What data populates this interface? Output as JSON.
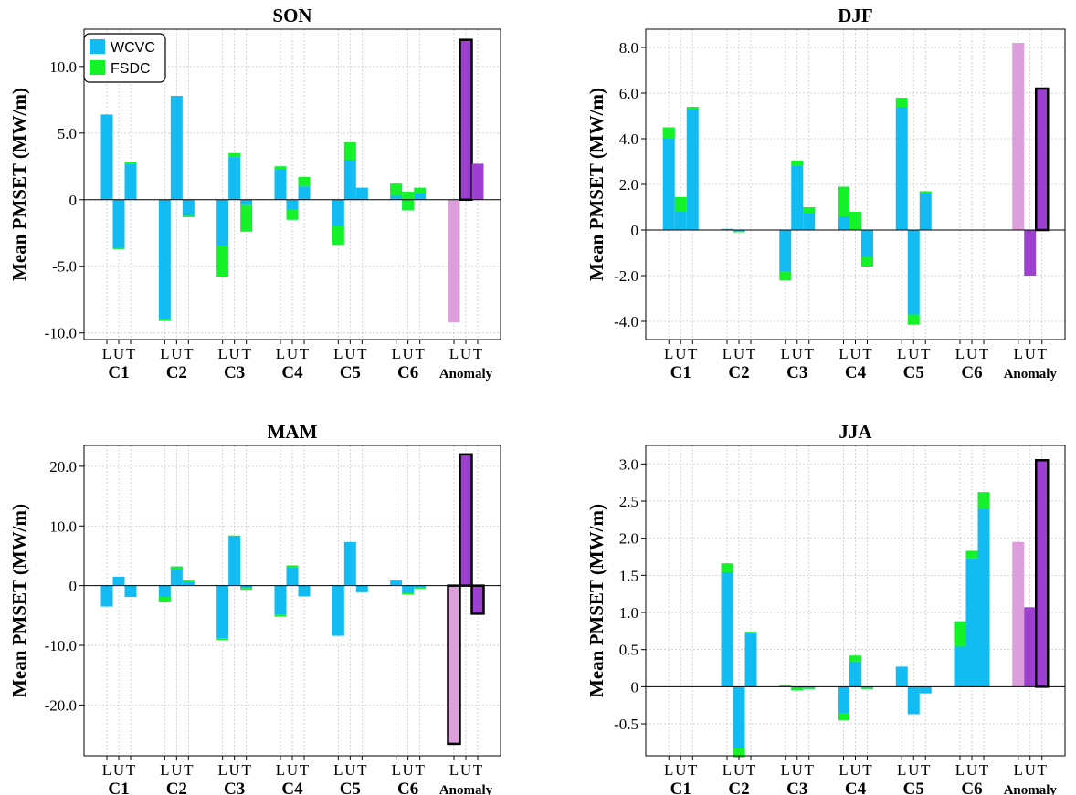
{
  "colors": {
    "WCVC": "#12bcf2",
    "FSDC": "#16f22a",
    "anomaly_L": "#dc9fdc",
    "anomaly_U": "#9d40d2",
    "anomaly_T": "#9d40d2"
  },
  "legend": {
    "items": [
      "WCVC",
      "FSDC"
    ]
  },
  "chart_data": [
    {
      "type": "bar",
      "title": "SON",
      "ylabel": "Mean PMSET (MW/m)",
      "ylim": [
        -10.5,
        12.8
      ],
      "yticks": [
        -10.0,
        -5.0,
        0,
        5.0,
        10.0
      ],
      "ytick_labels": [
        "-10.0",
        "-5.0",
        "0",
        "5.0",
        "10.0"
      ],
      "sublabels": [
        "L",
        "U",
        "T"
      ],
      "categories": [
        "C1",
        "C2",
        "C3",
        "C4",
        "C5",
        "C6",
        "Anomaly"
      ],
      "legend": "top-left",
      "grid": true,
      "series": [
        {
          "name": "WCVC",
          "values": [
            [
              6.4,
              -3.7,
              2.7
            ],
            [
              -9.1,
              7.8,
              -1.3
            ],
            [
              -3.5,
              3.2,
              -0.4
            ],
            [
              2.5,
              -1.5,
              1.0
            ],
            [
              -2.0,
              3.0,
              0.9
            ],
            [
              1.2,
              -0.8,
              0.5
            ]
          ]
        },
        {
          "name": "FSDC",
          "values": [
            [
              0.0,
              0.1,
              0.15
            ],
            [
              0.1,
              0.0,
              0.1
            ],
            [
              -2.3,
              0.3,
              -2.0
            ],
            [
              -0.2,
              0.8,
              0.7
            ],
            [
              -1.4,
              1.3,
              0.0
            ],
            [
              -0.9,
              1.4,
              0.4
            ]
          ]
        }
      ],
      "anomaly": {
        "L": -9.2,
        "U": 12.0,
        "T": 2.7,
        "outlined": "U"
      }
    },
    {
      "type": "bar",
      "title": "DJF",
      "ylabel": "Mean PMSET (MW/m)",
      "ylim": [
        -4.8,
        8.8
      ],
      "yticks": [
        -4.0,
        -2.0,
        0,
        2.0,
        4.0,
        6.0,
        8.0
      ],
      "ytick_labels": [
        "-4.0",
        "-2.0",
        "0",
        "2.0",
        "4.0",
        "6.0",
        "8.0"
      ],
      "sublabels": [
        "L",
        "U",
        "T"
      ],
      "categories": [
        "C1",
        "C2",
        "C3",
        "C4",
        "C5",
        "C6",
        "Anomaly"
      ],
      "grid": true,
      "series": [
        {
          "name": "WCVC",
          "values": [
            [
              4.5,
              0.8,
              5.3
            ],
            [
              0.05,
              -0.05,
              0.0
            ],
            [
              -1.8,
              2.8,
              1.0
            ],
            [
              1.9,
              0.0,
              -1.2
            ],
            [
              5.4,
              -3.7,
              1.7
            ],
            [
              0.0,
              0.0,
              0.0
            ]
          ]
        },
        {
          "name": "FSDC",
          "values": [
            [
              -0.5,
              0.65,
              0.1
            ],
            [
              0.0,
              -0.05,
              0.0
            ],
            [
              -0.4,
              0.25,
              -0.25
            ],
            [
              -1.3,
              0.8,
              -0.4
            ],
            [
              0.4,
              -0.45,
              -0.1
            ],
            [
              0.0,
              0.0,
              0.0
            ]
          ]
        }
      ],
      "anomaly": {
        "L": 8.2,
        "U": -2.0,
        "T": 6.2,
        "outlined": "T"
      }
    },
    {
      "type": "bar",
      "title": "MAM",
      "ylabel": "Mean PMSET (MW/m)",
      "ylim": [
        -28.5,
        23.5
      ],
      "yticks": [
        -20.0,
        -10.0,
        0,
        10.0,
        20.0
      ],
      "ytick_labels": [
        "-20.0",
        "-10.0",
        "0",
        "10.0",
        "20.0"
      ],
      "sublabels": [
        "L",
        "U",
        "T"
      ],
      "categories": [
        "C1",
        "C2",
        "C3",
        "C4",
        "C5",
        "C6",
        "Anomaly"
      ],
      "grid": true,
      "series": [
        {
          "name": "WCVC",
          "values": [
            [
              -3.5,
              1.5,
              -1.9
            ],
            [
              -2.8,
              3.2,
              0.7
            ],
            [
              -8.8,
              8.3,
              -0.4
            ],
            [
              -4.8,
              3.0,
              -1.8
            ],
            [
              -8.4,
              7.3,
              -1.1
            ],
            [
              1.0,
              -1.2,
              -0.3
            ]
          ]
        },
        {
          "name": "FSDC",
          "values": [
            [
              0.0,
              0.0,
              0.0
            ],
            [
              0.9,
              -0.5,
              0.3
            ],
            [
              -0.3,
              0.1,
              -0.3
            ],
            [
              -0.4,
              0.4,
              0.0
            ],
            [
              0.0,
              0.0,
              0.0
            ],
            [
              0.0,
              -0.3,
              -0.2
            ]
          ]
        }
      ],
      "anomaly": {
        "L": -26.5,
        "U": 22.0,
        "T": -4.7,
        "outlined": "L,U,T"
      }
    },
    {
      "type": "bar",
      "title": "JJA",
      "ylabel": "Mean PMSET (MW/m)",
      "ylim": [
        -0.93,
        3.25
      ],
      "yticks": [
        -0.5,
        0.0,
        0.5,
        1.0,
        1.5,
        2.0,
        2.5,
        3.0
      ],
      "ytick_labels": [
        "-0.5",
        "0",
        "0.5",
        "1.0",
        "1.5",
        "2.0",
        "2.5",
        "3.0"
      ],
      "sublabels": [
        "L",
        "U",
        "T"
      ],
      "categories": [
        "C1",
        "C2",
        "C3",
        "C4",
        "C5",
        "C6",
        "Anomaly"
      ],
      "grid": true,
      "series": [
        {
          "name": "WCVC",
          "values": [
            [
              0.0,
              0.0,
              0.0
            ],
            [
              1.66,
              -0.95,
              0.72
            ],
            [
              0.01,
              -0.05,
              -0.03
            ],
            [
              -0.36,
              0.34,
              -0.03
            ],
            [
              0.27,
              -0.37,
              -0.09
            ],
            [
              0.88,
              1.73,
              2.62
            ]
          ]
        },
        {
          "name": "FSDC",
          "values": [
            [
              0.0,
              0.0,
              0.0
            ],
            [
              -0.12,
              0.12,
              0.02
            ],
            [
              0.01,
              0.03,
              0.02
            ],
            [
              -0.09,
              0.08,
              0.02
            ],
            [
              0.0,
              0.0,
              0.0
            ],
            [
              -0.34,
              0.1,
              -0.23
            ]
          ]
        }
      ],
      "anomaly": {
        "L": 1.95,
        "U": 1.07,
        "T": 3.05,
        "outlined": "T"
      }
    }
  ]
}
